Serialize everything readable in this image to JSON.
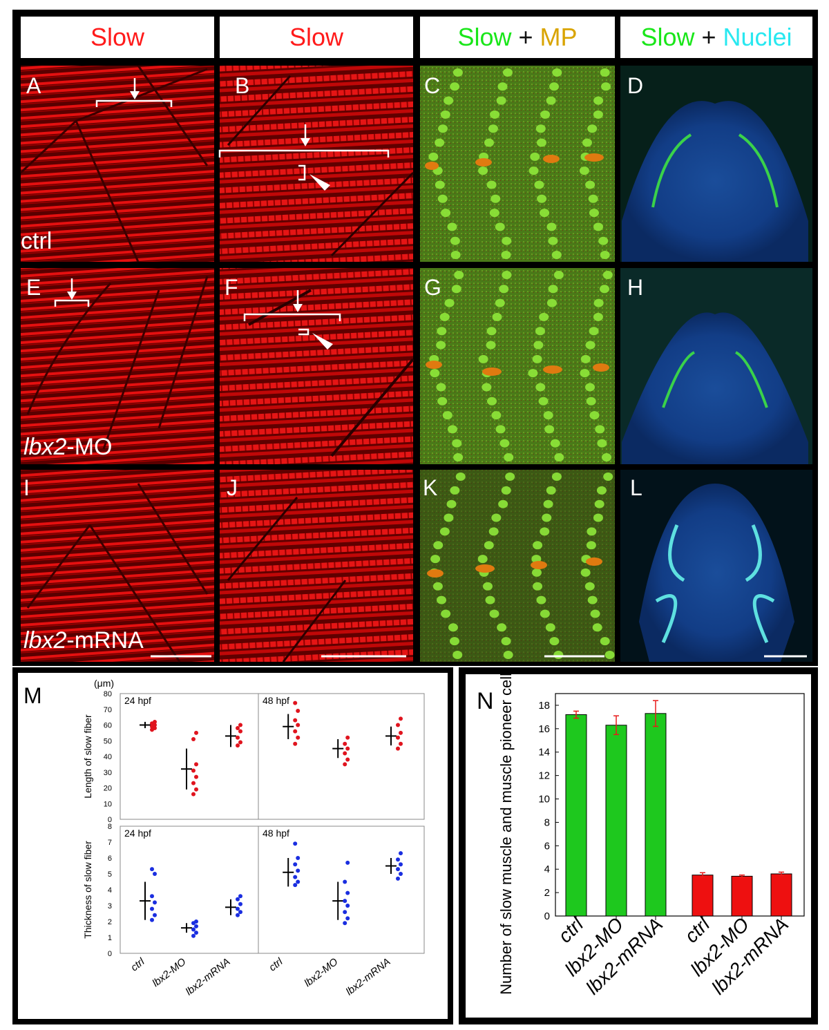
{
  "headers": [
    {
      "parts": [
        {
          "text": "Slow",
          "color": "red"
        }
      ]
    },
    {
      "parts": [
        {
          "text": "Slow",
          "color": "red"
        }
      ]
    },
    {
      "parts": [
        {
          "text": "Slow",
          "color": "green"
        },
        {
          "text": " + ",
          "color": "blk"
        },
        {
          "text": "MP",
          "color": "gold"
        }
      ]
    },
    {
      "parts": [
        {
          "text": "Slow",
          "color": "green"
        },
        {
          "text": " + ",
          "color": "blk"
        },
        {
          "text": "Nuclei",
          "color": "cyan"
        }
      ]
    }
  ],
  "panel_letters": [
    "A",
    "B",
    "C",
    "D",
    "E",
    "F",
    "G",
    "H",
    "I",
    "J",
    "K",
    "L"
  ],
  "conditions": {
    "row1": {
      "italic": "",
      "rest": "ctrl"
    },
    "row2": {
      "italic": "lbx2",
      "rest": "-MO"
    },
    "row3": {
      "italic": "lbx2",
      "rest": "-mRNA"
    }
  },
  "panel_M": {
    "letter": "M",
    "unit": "(μm)",
    "top_ylabel": "Length of slow fiber",
    "bottom_ylabel": "Thickness of slow fiber",
    "top_ticks": [
      "80",
      "70",
      "60",
      "50",
      "40",
      "30",
      "20",
      "10",
      "0"
    ],
    "bottom_ticks": [
      "8",
      "7",
      "6",
      "5",
      "4",
      "3",
      "2",
      "1",
      "0"
    ],
    "stage_left": "24 hpf",
    "stage_right": "48 hpf",
    "xlabels": [
      "ctrl",
      "lbx2-MO",
      "lbx2-mRNA",
      "ctrl",
      "lbx2-MO",
      "lbx2-mRNA"
    ],
    "colors": {
      "length": "#e0141e",
      "thickness": "#1a2ee0"
    },
    "length_24": [
      {
        "mean": 60,
        "sd": 2,
        "pts": [
          57,
          58,
          59,
          60,
          61,
          62
        ]
      },
      {
        "mean": 32,
        "sd": 13,
        "pts": [
          16,
          19,
          23,
          27,
          31,
          35,
          51,
          55
        ]
      },
      {
        "mean": 53,
        "sd": 7,
        "pts": [
          47,
          49,
          52,
          56,
          58,
          60
        ]
      }
    ],
    "length_48": [
      {
        "mean": 59,
        "sd": 8,
        "pts": [
          48,
          52,
          56,
          60,
          63,
          69,
          74
        ]
      },
      {
        "mean": 45,
        "sd": 6,
        "pts": [
          35,
          38,
          42,
          45,
          48,
          52
        ]
      },
      {
        "mean": 53,
        "sd": 6,
        "pts": [
          45,
          48,
          52,
          55,
          60,
          64
        ]
      }
    ],
    "thick_24": [
      {
        "mean": 3.3,
        "sd": 1.2,
        "pts": [
          2.1,
          2.4,
          2.8,
          3.2,
          3.6,
          5.0,
          5.3
        ]
      },
      {
        "mean": 1.6,
        "sd": 0.3,
        "pts": [
          1.1,
          1.3,
          1.5,
          1.7,
          1.9,
          2.0
        ]
      },
      {
        "mean": 2.9,
        "sd": 0.5,
        "pts": [
          2.4,
          2.6,
          2.8,
          3.1,
          3.4,
          3.6
        ]
      }
    ],
    "thick_48": [
      {
        "mean": 5.1,
        "sd": 0.9,
        "pts": [
          4.3,
          4.5,
          4.8,
          5.2,
          5.6,
          6.0,
          6.9
        ]
      },
      {
        "mean": 3.3,
        "sd": 1.2,
        "pts": [
          1.9,
          2.2,
          2.6,
          3.0,
          3.3,
          3.8,
          4.5,
          5.7
        ]
      },
      {
        "mean": 5.5,
        "sd": 0.5,
        "pts": [
          4.7,
          5.0,
          5.3,
          5.6,
          5.9,
          6.3
        ]
      }
    ]
  },
  "chart_data": {
    "type": "bar",
    "title": "",
    "letter": "N",
    "ylabel": "Number of slow muscle and muscle pioneer cells/somite",
    "categories": [
      "ctrl",
      "lbx2-MO",
      "lbx2-mRNA",
      "ctrl",
      "lbx2-MO",
      "lbx2-mRNA"
    ],
    "values": [
      17.2,
      16.3,
      17.3,
      3.5,
      3.4,
      3.6
    ],
    "errors": [
      0.3,
      0.8,
      1.1,
      0.2,
      0.1,
      0.15
    ],
    "bar_colors": [
      "#1ec81e",
      "#1ec81e",
      "#1ec81e",
      "#ee1010",
      "#ee1010",
      "#ee1010"
    ],
    "error_color": "#e81a1a",
    "ylim": [
      0,
      19
    ],
    "yticks": [
      "0",
      "2",
      "4",
      "6",
      "8",
      "10",
      "12",
      "14",
      "16",
      "18"
    ]
  }
}
